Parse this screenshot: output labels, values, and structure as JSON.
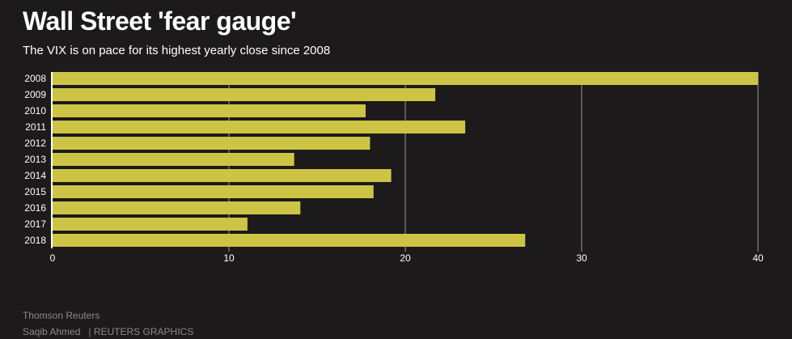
{
  "title": "Wall Street 'fear gauge'",
  "subtitle": "The VIX is on pace for its highest yearly close since 2008",
  "footer": {
    "source": "Thomson Reuters",
    "author": "Saqib Ahmed",
    "credit": "| REUTERS GRAPHICS"
  },
  "colors": {
    "background": "#1c1a1b",
    "bar": "#cdc446",
    "gridline": "#9a9a9a",
    "axis": "#ffffff",
    "text": "#ffffff",
    "footer_text": "#8a8a8a"
  },
  "chart_data": {
    "type": "bar",
    "orientation": "horizontal",
    "title": "Wall Street 'fear gauge'",
    "xlabel": "",
    "ylabel": "",
    "categories": [
      "2008",
      "2009",
      "2010",
      "2011",
      "2012",
      "2013",
      "2014",
      "2015",
      "2016",
      "2017",
      "2018"
    ],
    "values": [
      40.0,
      21.7,
      17.75,
      23.4,
      18.0,
      13.7,
      19.2,
      18.2,
      14.05,
      11.05,
      26.8
    ],
    "xlim": [
      0,
      40
    ],
    "xticks": [
      0,
      10,
      20,
      30,
      40
    ],
    "grid": true
  }
}
